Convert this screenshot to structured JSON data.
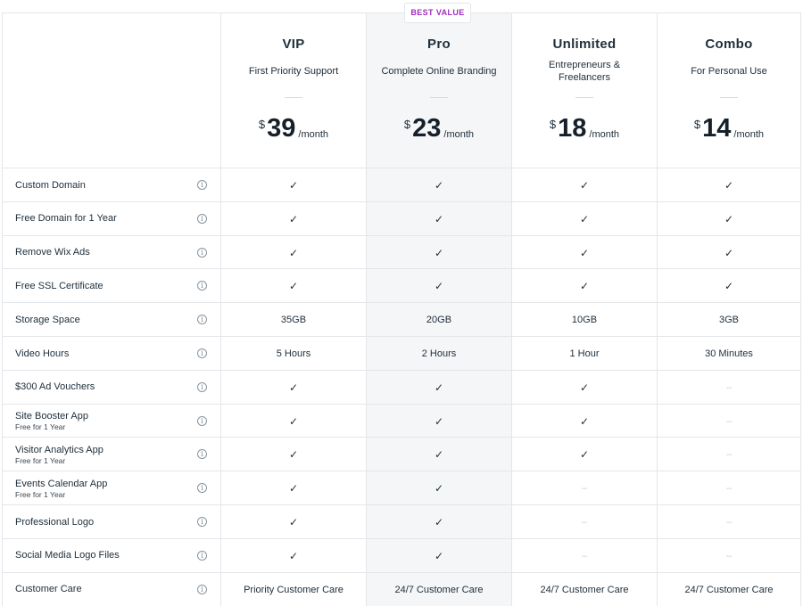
{
  "badge": "BEST VALUE",
  "plans": [
    {
      "name": "VIP",
      "subtitle": "First Priority Support",
      "currency": "$",
      "price": "39",
      "period": "/month"
    },
    {
      "name": "Pro",
      "subtitle": "Complete Online Branding",
      "currency": "$",
      "price": "23",
      "period": "/month"
    },
    {
      "name": "Unlimited",
      "subtitle": "Entrepreneurs & Freelancers",
      "currency": "$",
      "price": "18",
      "period": "/month"
    },
    {
      "name": "Combo",
      "subtitle": "For Personal Use",
      "currency": "$",
      "price": "14",
      "period": "/month"
    }
  ],
  "info_icon": "info-circle-icon",
  "check_icon": "checkmark-icon",
  "features": [
    {
      "label": "Custom Domain",
      "sub": "",
      "values": [
        "✓",
        "✓",
        "✓",
        "✓"
      ]
    },
    {
      "label": "Free Domain for 1 Year",
      "sub": "",
      "values": [
        "✓",
        "✓",
        "✓",
        "✓"
      ]
    },
    {
      "label": "Remove Wix Ads",
      "sub": "",
      "values": [
        "✓",
        "✓",
        "✓",
        "✓"
      ]
    },
    {
      "label": "Free SSL Certificate",
      "sub": "",
      "values": [
        "✓",
        "✓",
        "✓",
        "✓"
      ]
    },
    {
      "label": "Storage Space",
      "sub": "",
      "values": [
        "35GB",
        "20GB",
        "10GB",
        "3GB"
      ]
    },
    {
      "label": "Video Hours",
      "sub": "",
      "values": [
        "5 Hours",
        "2 Hours",
        "1 Hour",
        "30 Minutes"
      ]
    },
    {
      "label": "$300 Ad Vouchers",
      "sub": "",
      "values": [
        "✓",
        "✓",
        "✓",
        "–"
      ]
    },
    {
      "label": "Site Booster App",
      "sub": "Free for 1 Year",
      "values": [
        "✓",
        "✓",
        "✓",
        "–"
      ]
    },
    {
      "label": "Visitor Analytics App",
      "sub": "Free for 1 Year",
      "values": [
        "✓",
        "✓",
        "✓",
        "–"
      ]
    },
    {
      "label": "Events Calendar App",
      "sub": "Free for 1 Year",
      "values": [
        "✓",
        "✓",
        "–",
        "–"
      ]
    },
    {
      "label": "Professional Logo",
      "sub": "",
      "values": [
        "✓",
        "✓",
        "–",
        "–"
      ]
    },
    {
      "label": "Social Media Logo Files",
      "sub": "",
      "values": [
        "✓",
        "✓",
        "–",
        "–"
      ]
    },
    {
      "label": "Customer Care",
      "sub": "",
      "values": [
        "Priority Customer Care",
        "24/7 Customer Care",
        "24/7 Customer Care",
        "24/7 Customer Care"
      ]
    }
  ]
}
